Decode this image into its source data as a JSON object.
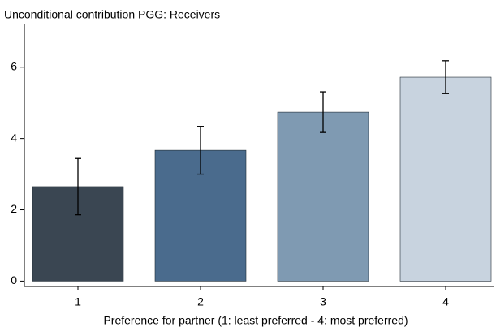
{
  "chart_data": {
    "type": "bar",
    "title": "Unconditional contribution PGG: Receivers",
    "x_label": "Preference for partner (1: least preferred - 4: most preferred)",
    "categories": [
      "1",
      "2",
      "3",
      "4"
    ],
    "values": [
      2.65,
      3.67,
      4.74,
      5.72
    ],
    "errors": [
      0.79,
      0.67,
      0.57,
      0.46
    ],
    "colors": [
      "#3a4652",
      "#4a6b8d",
      "#7f9ab2",
      "#c8d3df"
    ],
    "ylim": [
      -0.15,
      7.2
    ],
    "yticks": [
      0,
      2,
      4,
      6
    ],
    "grid": false
  }
}
